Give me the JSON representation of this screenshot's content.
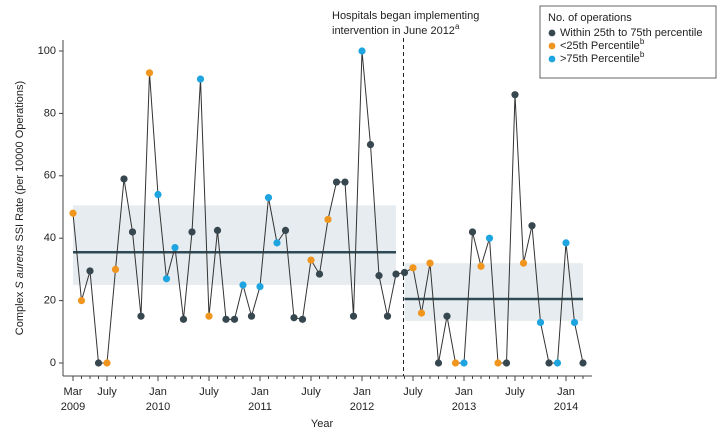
{
  "chart_data": {
    "type": "line",
    "y_label": [
      "Complex ",
      "S aureus",
      " SSI Rate (per 10000 Operations)"
    ],
    "x_label": "Year",
    "annotation": [
      "Hospitals began implementing",
      "intervention in June 2012"
    ],
    "annotation_sup": "a",
    "intervention_index": 39,
    "categories": [
      "Mar",
      null,
      null,
      null,
      "July",
      null,
      null,
      null,
      null,
      null,
      "Jan",
      null,
      null,
      null,
      null,
      null,
      "July",
      null,
      null,
      null,
      null,
      null,
      "Jan",
      null,
      null,
      null,
      null,
      null,
      "July",
      null,
      null,
      null,
      null,
      null,
      "Jan",
      null,
      null,
      null,
      null,
      null,
      "July",
      null,
      null,
      null,
      null,
      null,
      "Jan",
      null,
      null,
      null,
      null,
      null,
      "July",
      null,
      null,
      null,
      null,
      null,
      "Jan",
      null,
      null
    ],
    "years": [
      "2009",
      null,
      null,
      null,
      null,
      null,
      null,
      null,
      null,
      null,
      "2010",
      null,
      null,
      null,
      null,
      null,
      null,
      null,
      null,
      null,
      null,
      null,
      "2011",
      null,
      null,
      null,
      null,
      null,
      null,
      null,
      null,
      null,
      null,
      null,
      "2012",
      null,
      null,
      null,
      null,
      null,
      null,
      null,
      null,
      null,
      null,
      null,
      "2013",
      null,
      null,
      null,
      null,
      null,
      null,
      null,
      null,
      null,
      null,
      null,
      "2014",
      null,
      null
    ],
    "values": [
      48,
      20,
      29.5,
      0,
      0,
      30,
      59,
      42,
      15,
      93,
      54,
      27,
      37,
      14,
      42,
      91,
      15,
      42.5,
      14,
      14,
      25,
      15,
      24.5,
      53,
      38.5,
      42.5,
      14.5,
      14,
      33,
      28.5,
      46,
      58,
      58,
      15,
      100,
      70,
      28,
      15,
      28.5,
      29,
      30.5,
      16,
      32,
      0,
      15,
      0,
      0,
      42,
      31,
      40,
      0,
      0,
      86,
      32,
      44,
      13,
      0,
      0,
      38.5,
      13,
      0
    ],
    "point_group": [
      1,
      1,
      0,
      0,
      1,
      1,
      0,
      0,
      0,
      1,
      2,
      2,
      2,
      0,
      0,
      2,
      1,
      0,
      0,
      0,
      2,
      0,
      2,
      2,
      2,
      0,
      0,
      0,
      1,
      0,
      1,
      0,
      0,
      0,
      2,
      0,
      0,
      0,
      0,
      0,
      1,
      1,
      1,
      0,
      0,
      1,
      2,
      0,
      1,
      2,
      1,
      0,
      0,
      1,
      0,
      2,
      0,
      2,
      2,
      2,
      0
    ],
    "line_color": "#333333",
    "legend_title": "No. of operations",
    "groups": [
      {
        "name": "Within 25th to 75th percentile",
        "color": "#37474f"
      },
      {
        "name": "<25th Percentile",
        "sup": "b",
        "color": "#f0961e"
      },
      {
        "name": ">75th Percentile",
        "sup": "b",
        "color": "#1ea5e0"
      }
    ],
    "periods": [
      {
        "start": 0,
        "end": 38,
        "low": 25,
        "high": 50.5,
        "mean": 35.5
      },
      {
        "start": 39,
        "end": 60,
        "low": 13.5,
        "high": 32,
        "mean": 20.5
      }
    ],
    "band_color": "#e6ecef",
    "mean_color": "#2d4a55",
    "ylim": [
      0,
      100
    ],
    "yticks": [
      0,
      20,
      40,
      60,
      80,
      100
    ]
  }
}
